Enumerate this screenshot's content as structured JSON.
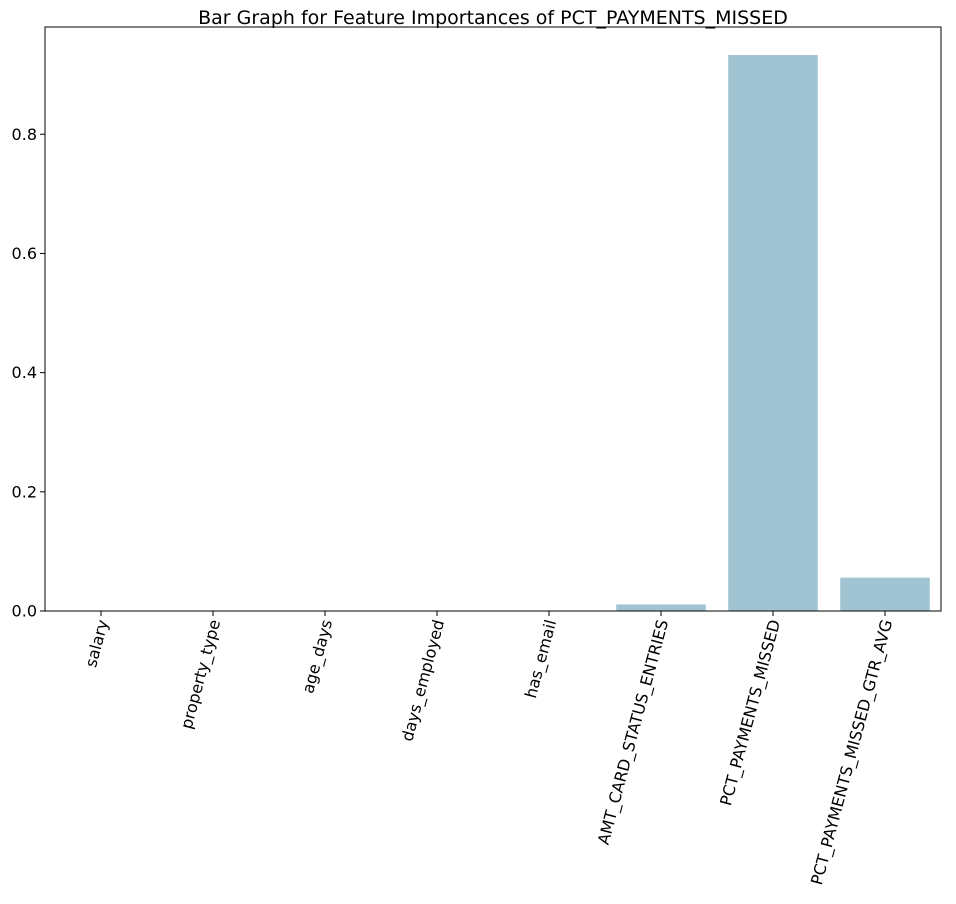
{
  "chart_data": {
    "type": "bar",
    "title": "Bar Graph for Feature Importances of PCT_PAYMENTS_MISSED",
    "xlabel": "",
    "ylabel": "",
    "categories": [
      "salary",
      "property_type",
      "age_days",
      "days_employed",
      "has_email",
      "AMT_CARD_STATUS_ENTRIES",
      "PCT_PAYMENTS_MISSED",
      "PCT_PAYMENTS_MISSED_GTR_AVG"
    ],
    "values": [
      0,
      0,
      0,
      0,
      0,
      0.011,
      0.933,
      0.056
    ],
    "ylim": [
      0,
      0.98
    ],
    "yticks": [
      0.0,
      0.2,
      0.4,
      0.6,
      0.8
    ],
    "ytick_labels": [
      "0.0",
      "0.2",
      "0.4",
      "0.6",
      "0.8"
    ],
    "bar_color": "#a1c4d3",
    "grid": false,
    "xtick_rotation_deg": 75
  }
}
